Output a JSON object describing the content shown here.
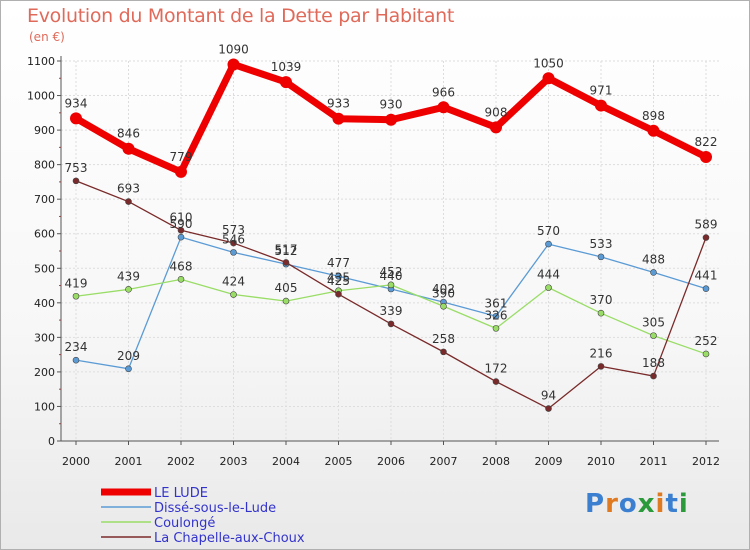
{
  "header": {
    "title": "Evolution du Montant de la Dette par Habitant",
    "unit": "(en €)"
  },
  "logo": {
    "text": "Proxiti"
  },
  "colors": {
    "grid": "#dddddd",
    "axis": "#555555"
  },
  "chart_data": {
    "type": "line",
    "title": "Evolution du Montant de la Dette par Habitant",
    "subtitle": "(en €)",
    "x": [
      "2000",
      "2001",
      "2002",
      "2003",
      "2004",
      "2005",
      "2006",
      "2007",
      "2008",
      "2009",
      "2010",
      "2011",
      "2012"
    ],
    "ylim": [
      0,
      1100
    ],
    "yticks": [
      0,
      100,
      200,
      300,
      400,
      500,
      600,
      700,
      800,
      900,
      1000,
      1100
    ],
    "grid": true,
    "legend_position": "bottom-left",
    "series": [
      {
        "name": "LE LUDE",
        "color": "#ee0000",
        "width": 7,
        "marker": 6,
        "values": [
          934,
          846,
          779,
          1090,
          1039,
          933,
          930,
          966,
          908,
          1050,
          971,
          898,
          822
        ]
      },
      {
        "name": "Dissé-sous-le-Lude",
        "color": "#5b9bd5",
        "width": 1.3,
        "marker": 3,
        "values": [
          234,
          209,
          590,
          546,
          512,
          477,
          440,
          402,
          361,
          570,
          533,
          488,
          441
        ]
      },
      {
        "name": "Coulongé",
        "color": "#99dd66",
        "width": 1.3,
        "marker": 3,
        "values": [
          419,
          439,
          468,
          424,
          405,
          435,
          452,
          390,
          326,
          444,
          370,
          305,
          252
        ]
      },
      {
        "name": "La Chapelle-aux-Choux",
        "color": "#7a2a2a",
        "width": 1.3,
        "marker": 3,
        "values": [
          753,
          693,
          610,
          573,
          517,
          425,
          339,
          258,
          172,
          94,
          216,
          188,
          589
        ]
      }
    ]
  }
}
